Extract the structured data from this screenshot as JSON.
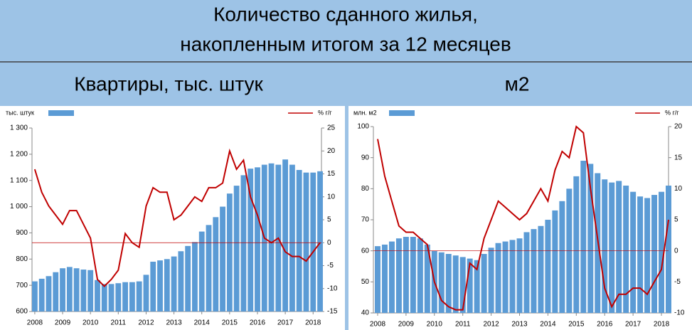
{
  "header": {
    "title": [
      "Количество сданного жилья,",
      "накопленным итогом за 12 месяцев"
    ],
    "subtitles": [
      "Квартиры, тыс. штук",
      "м2"
    ]
  },
  "chart_data": [
    {
      "type": "bar-line",
      "x": [
        2008,
        2008.25,
        2008.5,
        2008.75,
        2009,
        2009.25,
        2009.5,
        2009.75,
        2010,
        2010.25,
        2010.5,
        2010.75,
        2011,
        2011.25,
        2011.5,
        2011.75,
        2012,
        2012.25,
        2012.5,
        2012.75,
        2013,
        2013.25,
        2013.5,
        2013.75,
        2014,
        2014.25,
        2014.5,
        2014.75,
        2015,
        2015.25,
        2015.5,
        2015.75,
        2016,
        2016.25,
        2016.5,
        2016.75,
        2017,
        2017.25,
        2017.5,
        2017.75,
        2018,
        2018.25
      ],
      "xlim": [
        2007.9,
        2018.3
      ],
      "xticks": [
        2008,
        2009,
        2010,
        2011,
        2012,
        2013,
        2014,
        2015,
        2016,
        2017,
        2018
      ],
      "ylim": [
        600,
        1300
      ],
      "yticks": [
        600,
        700,
        800,
        900,
        {
          "value": 1000,
          "label": "1 000"
        },
        {
          "value": 1100,
          "label": "1 100"
        },
        {
          "value": 1200,
          "label": "1 200"
        },
        {
          "value": 1300,
          "label": "1 300"
        }
      ],
      "y2lim": [
        -15,
        25
      ],
      "y2ticks": [
        -15,
        -10,
        -5,
        0,
        5,
        10,
        15,
        20,
        25
      ],
      "series": [
        {
          "name": "тыс. штук",
          "type": "bar",
          "color": "#5b9bd5",
          "values": [
            715,
            725,
            735,
            750,
            765,
            770,
            765,
            760,
            758,
            720,
            705,
            705,
            708,
            712,
            712,
            715,
            740,
            790,
            795,
            800,
            810,
            830,
            850,
            865,
            905,
            930,
            960,
            1000,
            1050,
            1080,
            1120,
            1145,
            1150,
            1160,
            1165,
            1160,
            1180,
            1160,
            1140,
            1130,
            1130,
            1135
          ]
        },
        {
          "name": "% г/г",
          "type": "line",
          "axis": "y2",
          "color": "#c00000",
          "values": [
            16,
            11,
            8,
            6,
            4,
            7,
            7,
            4,
            1,
            -8,
            -9.5,
            -8,
            -6,
            2,
            0,
            -1,
            8,
            12,
            11,
            11,
            5,
            6,
            8,
            10,
            9,
            12,
            12,
            13,
            20,
            16,
            18,
            10,
            6,
            1,
            0,
            1,
            -2,
            -3,
            -3,
            -4,
            -2,
            0
          ]
        }
      ]
    },
    {
      "type": "bar-line",
      "x": [
        2008,
        2008.25,
        2008.5,
        2008.75,
        2009,
        2009.25,
        2009.5,
        2009.75,
        2010,
        2010.25,
        2010.5,
        2010.75,
        2011,
        2011.25,
        2011.5,
        2011.75,
        2012,
        2012.25,
        2012.5,
        2012.75,
        2013,
        2013.25,
        2013.5,
        2013.75,
        2014,
        2014.25,
        2014.5,
        2014.75,
        2015,
        2015.25,
        2015.5,
        2015.75,
        2016,
        2016.25,
        2016.5,
        2016.75,
        2017,
        2017.25,
        2017.5,
        2017.75,
        2018,
        2018.25
      ],
      "xlim": [
        2007.85,
        2018.25
      ],
      "xticks": [
        2008,
        2009,
        2010,
        2011,
        2012,
        2013,
        2014,
        2015,
        2016,
        2017,
        2018
      ],
      "ylim": [
        40,
        100
      ],
      "yticks": [
        40,
        50,
        60,
        70,
        80,
        90,
        100
      ],
      "y2lim": [
        -10,
        20
      ],
      "y2ticks": [
        -10,
        -5,
        0,
        5,
        10,
        15,
        20
      ],
      "series": [
        {
          "name": "млн. м2",
          "type": "bar",
          "color": "#5b9bd5",
          "values": [
            61.5,
            62,
            63,
            64,
            64.5,
            64.5,
            64,
            62,
            60,
            59.5,
            59,
            58.5,
            58,
            57.5,
            57,
            59,
            61,
            62.5,
            63,
            63.5,
            64,
            66,
            67,
            68,
            70,
            73,
            76,
            80,
            84,
            89,
            88,
            85,
            83,
            82,
            82.5,
            81,
            79,
            77.5,
            77,
            78,
            79,
            81
          ]
        },
        {
          "name": "% г/г",
          "type": "line",
          "axis": "y2",
          "color": "#c00000",
          "values": [
            18,
            12,
            8,
            4,
            3,
            3,
            2,
            1,
            -5,
            -8,
            -9,
            -9.5,
            -9.5,
            -2,
            -3,
            2,
            5,
            8,
            7,
            6,
            5,
            6,
            8,
            10,
            8,
            13,
            16,
            15,
            20,
            19,
            10,
            2,
            -6,
            -9,
            -7,
            -7,
            -6,
            -6,
            -7,
            -5,
            -3,
            5
          ]
        }
      ]
    }
  ]
}
